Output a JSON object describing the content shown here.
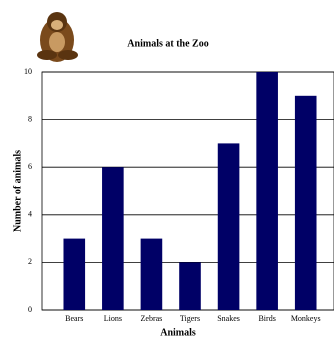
{
  "chart_data": {
    "type": "bar",
    "title": "Animals at the Zoo",
    "x_label": "Animals",
    "y_label": "Number of animals",
    "categories": [
      "Bears",
      "Lions",
      "Zebras",
      "Tigers",
      "Snakes",
      "Birds",
      "Monkeys"
    ],
    "values": [
      3,
      6,
      3,
      2,
      7,
      10,
      9
    ],
    "color": "#000066",
    "ylim": [
      0,
      10
    ],
    "yticks": [
      0,
      2,
      4,
      6,
      8,
      10
    ],
    "grid": true
  }
}
